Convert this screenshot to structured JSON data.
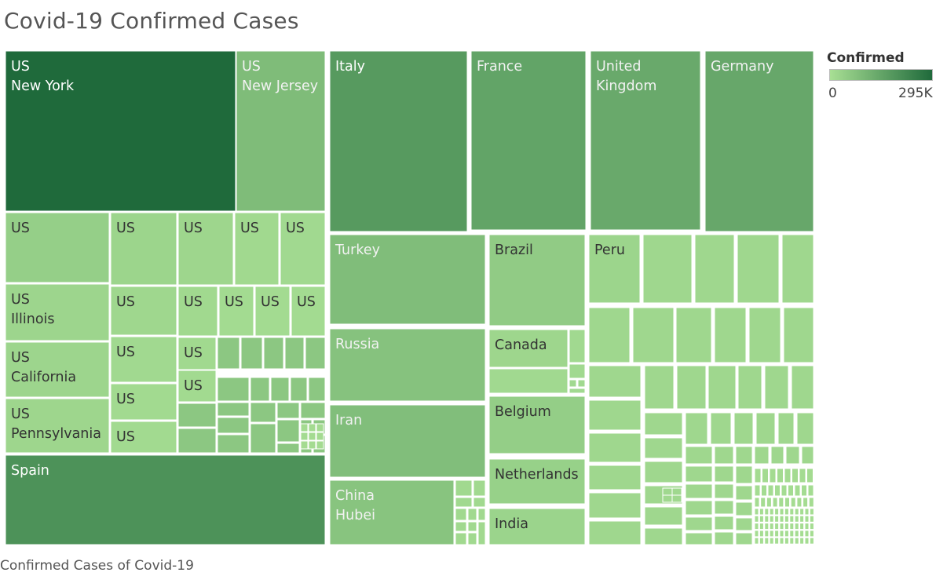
{
  "title": "Covid-19 Confirmed Cases",
  "caption": "Confirmed Cases of Covid-19",
  "legend": {
    "title": "Confirmed",
    "min_label": "0",
    "max_label": "295K",
    "color_low": "#a8df94",
    "color_high": "#1f6a3b"
  },
  "chart_data": {
    "type": "treemap",
    "color_measure": "Confirmed",
    "color_range": [
      0,
      295000
    ],
    "leaves": [
      {
        "country": "US",
        "region": "New York",
        "value": 295000
      },
      {
        "country": "US",
        "region": "New Jersey",
        "value": 88000
      },
      {
        "country": "US",
        "region": "",
        "value": 40000
      },
      {
        "country": "US",
        "region": "",
        "value": 26000
      },
      {
        "country": "US",
        "region": "",
        "value": 22000
      },
      {
        "country": "US",
        "region": "",
        "value": 16000
      },
      {
        "country": "US",
        "region": "",
        "value": 14000
      },
      {
        "country": "US",
        "region": "Illinois",
        "value": 24000
      },
      {
        "country": "US",
        "region": "California",
        "value": 24000
      },
      {
        "country": "US",
        "region": "Pennsylvania",
        "value": 22000
      },
      {
        "country": "US",
        "region": "",
        "value": 20000
      },
      {
        "country": "US",
        "region": "",
        "value": 16000
      },
      {
        "country": "US",
        "region": "",
        "value": 11000
      },
      {
        "country": "US",
        "region": "",
        "value": 11000
      },
      {
        "country": "US",
        "region": "",
        "value": 10000
      },
      {
        "country": "US",
        "region": "",
        "value": 14000
      },
      {
        "country": "US",
        "region": "",
        "value": 15000
      },
      {
        "country": "US",
        "region": "",
        "value": 12000
      },
      {
        "country": "US",
        "region": "",
        "value": 12000
      },
      {
        "country": "US",
        "region": "",
        "value": 12000
      },
      {
        "country": "Spain",
        "region": "",
        "value": 195000
      },
      {
        "country": "Italy",
        "region": "",
        "value": 175000
      },
      {
        "country": "France",
        "region": "",
        "value": 150000
      },
      {
        "country": "United Kingdom",
        "region": "",
        "value": 135000
      },
      {
        "country": "Germany",
        "region": "",
        "value": 140000
      },
      {
        "country": "Turkey",
        "region": "",
        "value": 86000
      },
      {
        "country": "Russia",
        "region": "",
        "value": 73000
      },
      {
        "country": "Iran",
        "region": "",
        "value": 84000
      },
      {
        "country": "China",
        "region": "Hubei",
        "value": 68000
      },
      {
        "country": "Brazil",
        "region": "",
        "value": 50000
      },
      {
        "country": "Canada",
        "region": "",
        "value": 22000
      },
      {
        "country": "Belgium",
        "region": "",
        "value": 44000
      },
      {
        "country": "Netherlands",
        "region": "",
        "value": 36000
      },
      {
        "country": "India",
        "region": "",
        "value": 27000
      },
      {
        "country": "Peru",
        "region": "",
        "value": 25000
      }
    ]
  }
}
